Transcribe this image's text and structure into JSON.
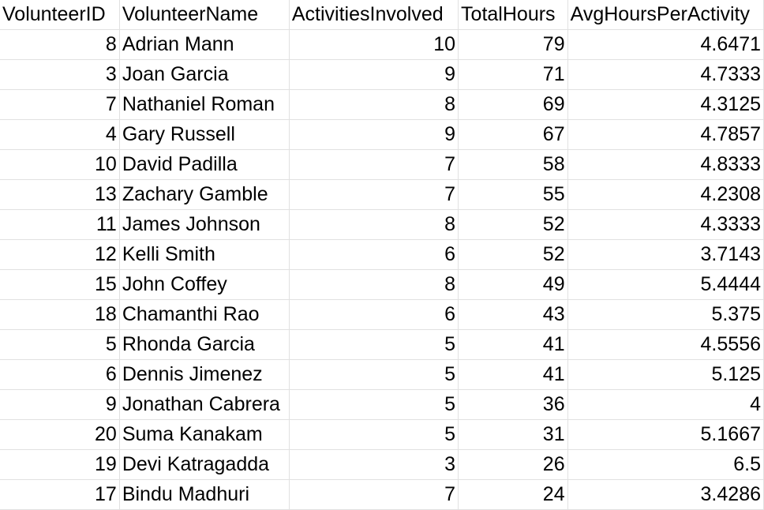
{
  "headers": [
    "VolunteerID",
    "VolunteerName",
    "ActivitiesInvolved",
    "TotalHours",
    "AvgHoursPerActivity"
  ],
  "rows": [
    [
      "8",
      "Adrian Mann",
      "10",
      "79",
      "4.6471"
    ],
    [
      "3",
      "Joan Garcia",
      "9",
      "71",
      "4.7333"
    ],
    [
      "7",
      "Nathaniel Roman",
      "8",
      "69",
      "4.3125"
    ],
    [
      "4",
      "Gary Russell",
      "9",
      "67",
      "4.7857"
    ],
    [
      "10",
      "David Padilla",
      "7",
      "58",
      "4.8333"
    ],
    [
      "13",
      "Zachary Gamble",
      "7",
      "55",
      "4.2308"
    ],
    [
      "11",
      "James Johnson",
      "8",
      "52",
      "4.3333"
    ],
    [
      "12",
      "Kelli Smith",
      "6",
      "52",
      "3.7143"
    ],
    [
      "15",
      "John Coffey",
      "8",
      "49",
      "5.4444"
    ],
    [
      "18",
      "Chamanthi Rao",
      "6",
      "43",
      "5.375"
    ],
    [
      "5",
      "Rhonda Garcia",
      "5",
      "41",
      "4.5556"
    ],
    [
      "6",
      "Dennis Jimenez",
      "5",
      "41",
      "5.125"
    ],
    [
      "9",
      "Jonathan Cabrera",
      "5",
      "36",
      "4"
    ],
    [
      "20",
      "Suma Kanakam",
      "5",
      "31",
      "5.1667"
    ],
    [
      "19",
      "Devi Katragadda",
      "3",
      "26",
      "6.5"
    ],
    [
      "17",
      "Bindu Madhuri",
      "7",
      "24",
      "3.4286"
    ]
  ]
}
